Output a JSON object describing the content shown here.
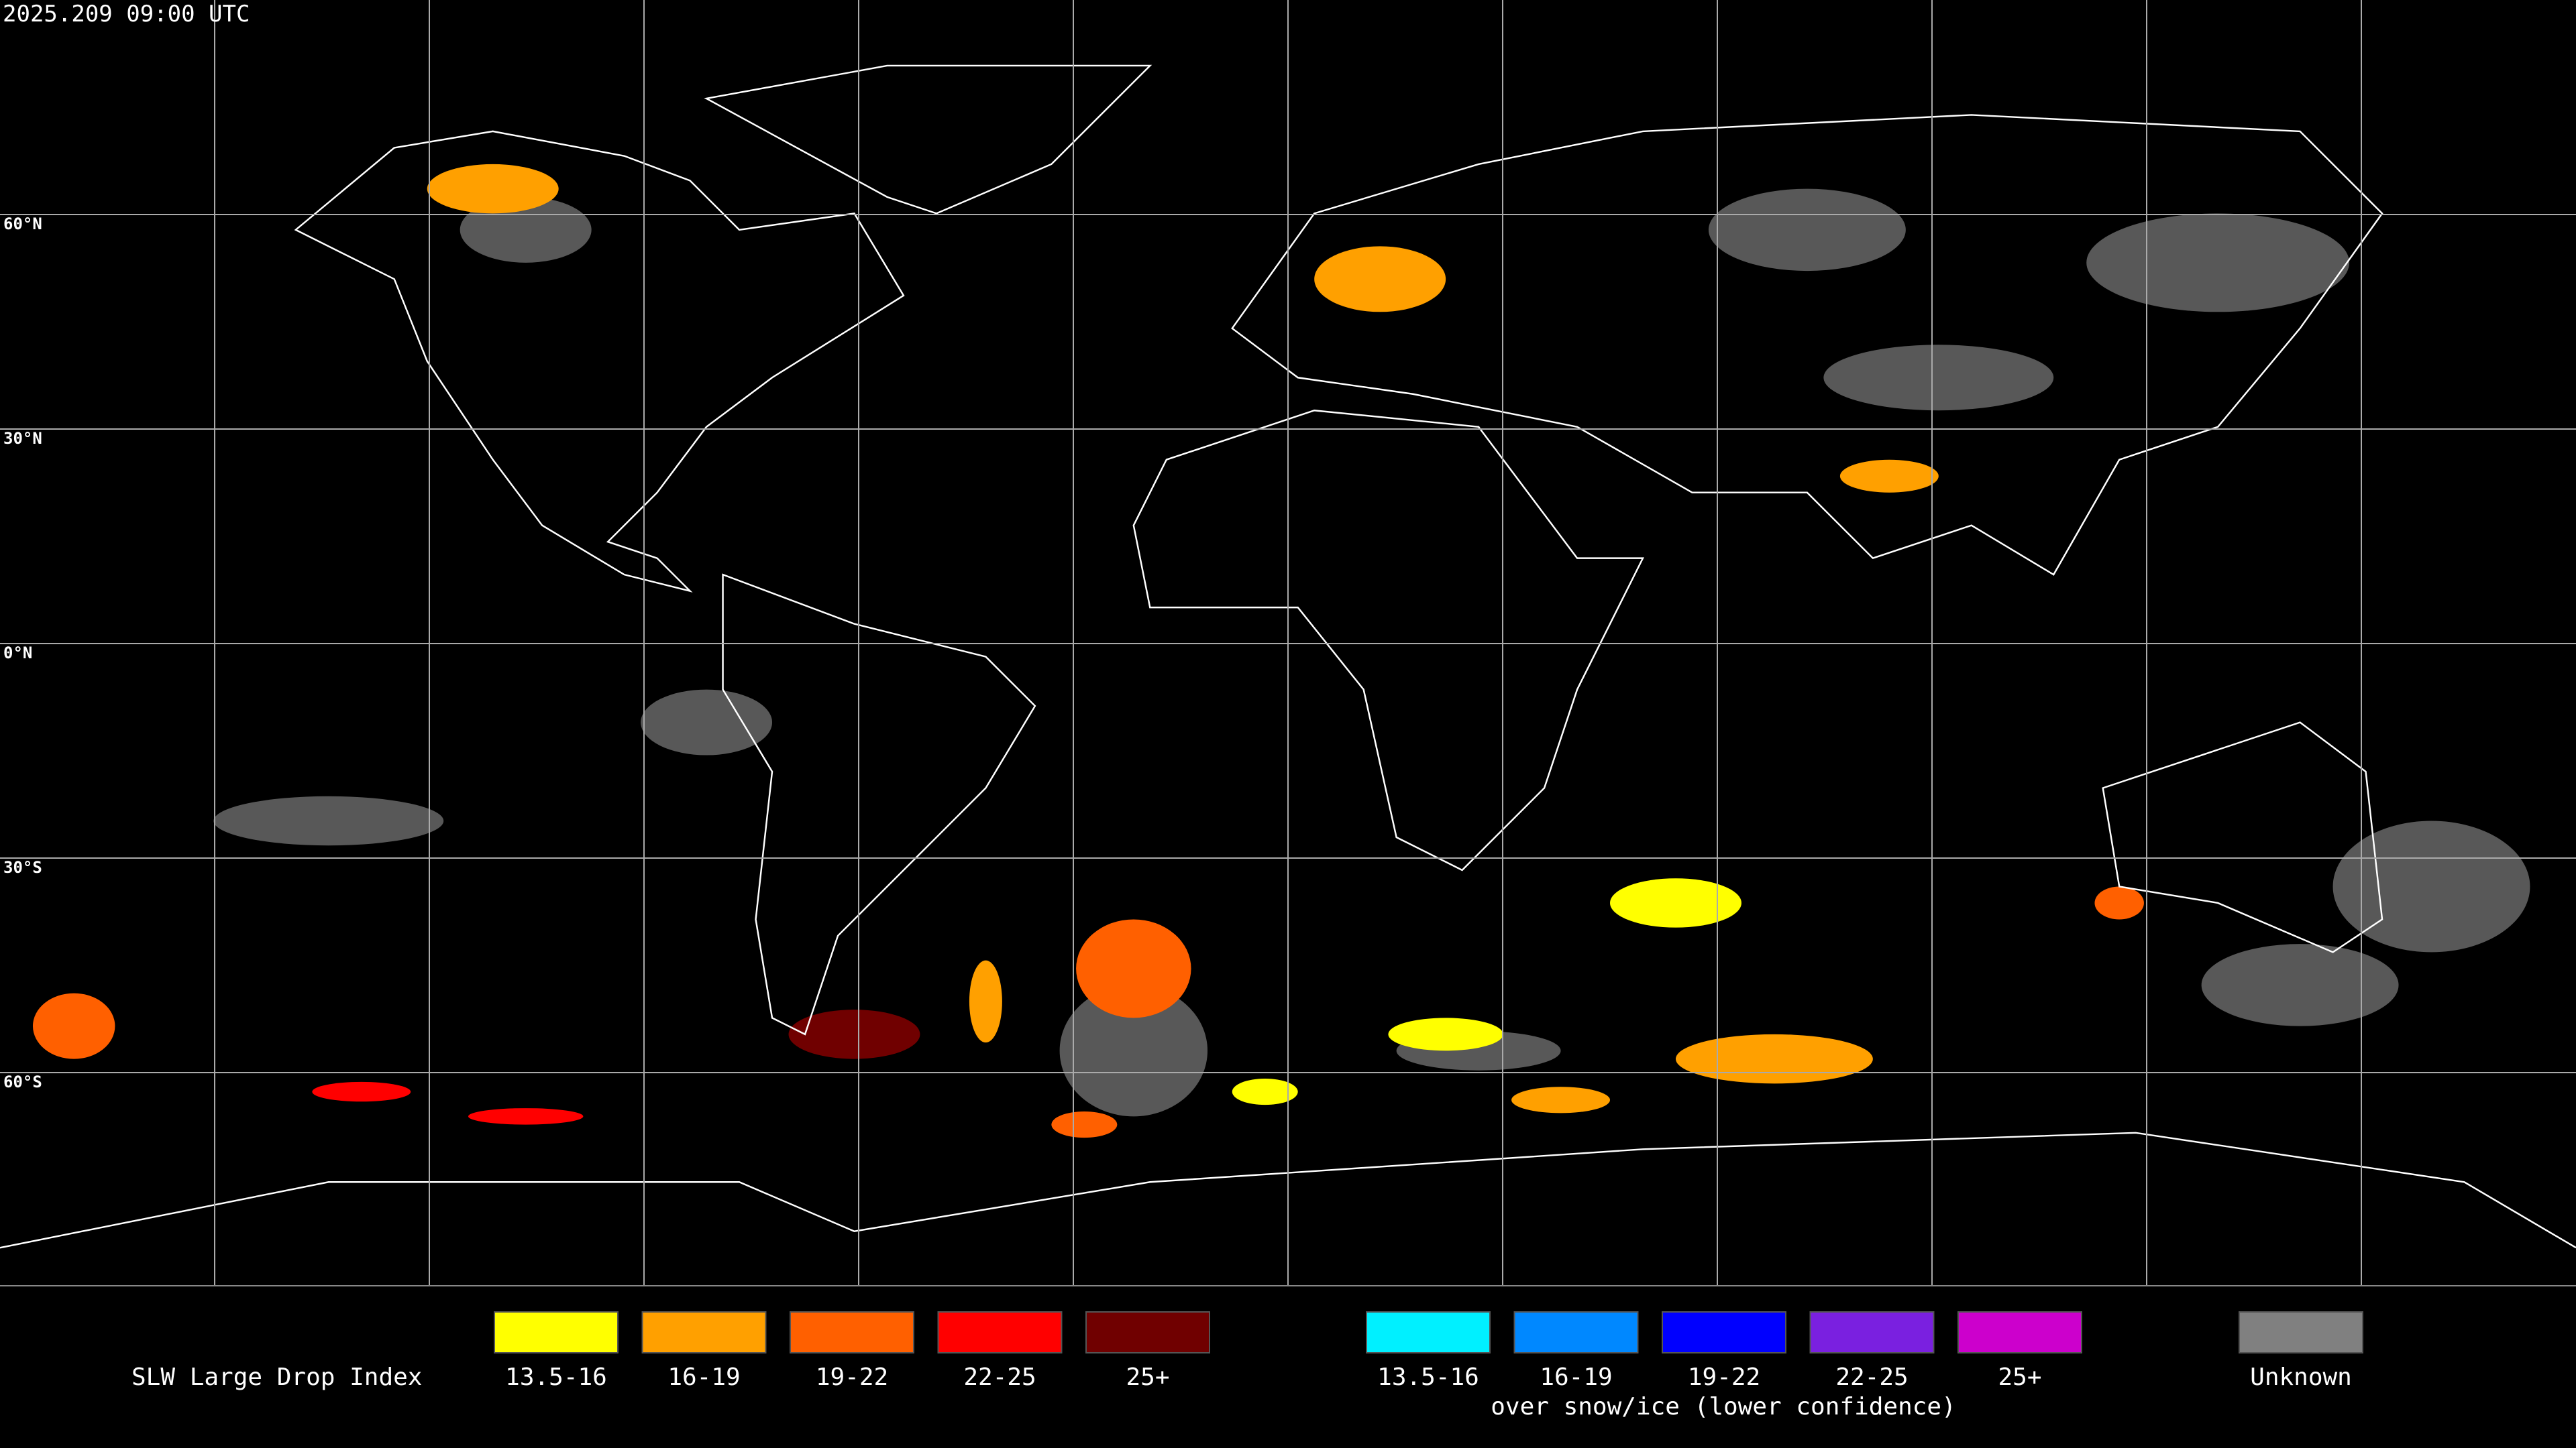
{
  "timestamp": "2025.209 09:00 UTC",
  "latitude_labels": [
    "60°N",
    "30°N",
    "0°N",
    "30°S",
    "60°S"
  ],
  "legend": {
    "title": "SLW Large Drop Index",
    "groups": [
      {
        "swatches": [
          {
            "label": "13.5-16",
            "color": "#ffff00"
          },
          {
            "label": "16-19",
            "color": "#ffa000"
          },
          {
            "label": "19-22",
            "color": "#ff6000"
          },
          {
            "label": "22-25",
            "color": "#ff0000"
          },
          {
            "label": "25+",
            "color": "#700000"
          }
        ]
      },
      {
        "swatches": [
          {
            "label": "13.5-16",
            "color": "#00f0ff"
          },
          {
            "label": "16-19",
            "color": "#0088ff"
          },
          {
            "label": "19-22",
            "color": "#0000ff"
          },
          {
            "label": "22-25",
            "color": "#7a20e0"
          },
          {
            "label": "25+",
            "color": "#cc00cc"
          }
        ],
        "note": "over snow/ice (lower confidence)"
      }
    ],
    "unknown": {
      "label": "Unknown",
      "color": "#808080"
    }
  }
}
